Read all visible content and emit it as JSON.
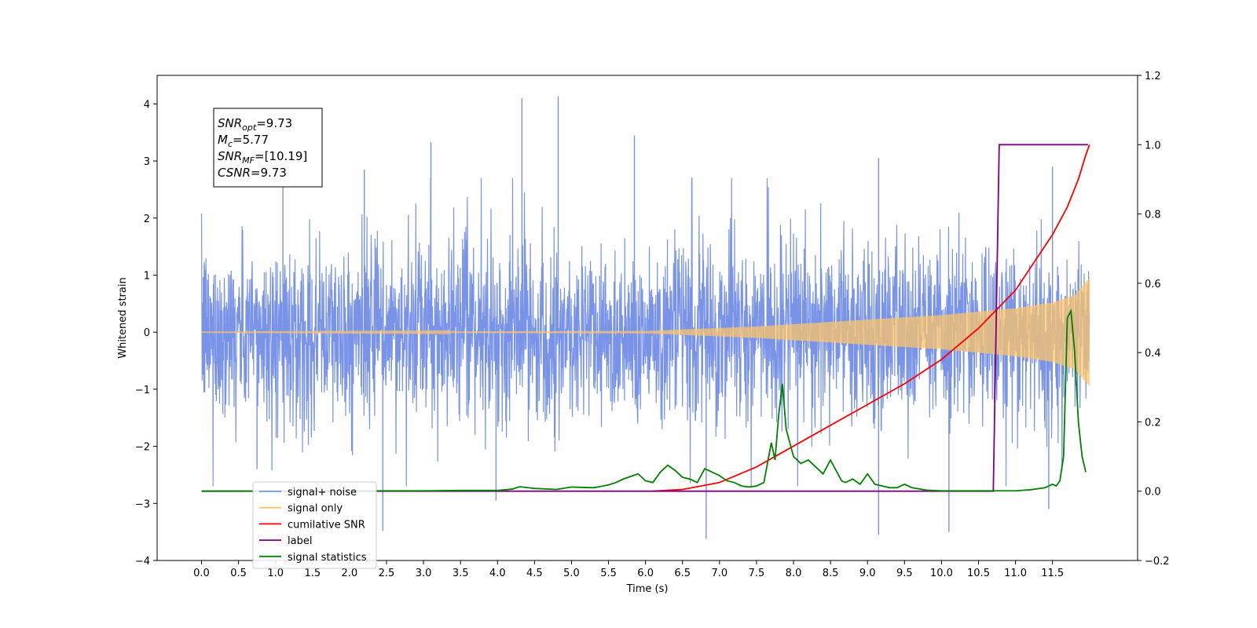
{
  "chart_data": {
    "type": "line",
    "title": "",
    "xlabel": "Time (s)",
    "ylabel_left": "Whitened strain",
    "ylabel_right": "",
    "xlim": [
      -0.6,
      12.65
    ],
    "ylim_left": [
      -4,
      4.5
    ],
    "ylim_right": [
      -0.2,
      1.2
    ],
    "x_ticks": [
      0.0,
      0.5,
      1.0,
      1.5,
      2.0,
      2.5,
      3.0,
      3.5,
      4.0,
      4.5,
      5.0,
      5.5,
      6.0,
      6.5,
      7.0,
      7.5,
      8.0,
      8.5,
      9.0,
      9.5,
      10.0,
      10.5,
      11.0,
      11.5
    ],
    "x_tick_labels": [
      "0.0",
      "0.5",
      "1.0",
      "1.5",
      "2.0",
      "2.5",
      "3.0",
      "3.5",
      "4.0",
      "4.5",
      "5.0",
      "5.5",
      "6.0",
      "6.5",
      "7.0",
      "7.5",
      "8.0",
      "8.5",
      "9.0",
      "9.5",
      "10.0",
      "10.5",
      "11.0",
      "11.5"
    ],
    "y_left_ticks": [
      -4,
      -3,
      -2,
      -1,
      0,
      1,
      2,
      3,
      4
    ],
    "y_left_tick_labels": [
      "−4",
      "−3",
      "−2",
      "−1",
      "0",
      "1",
      "2",
      "3",
      "4"
    ],
    "y_right_ticks": [
      -0.2,
      0.0,
      0.2,
      0.4,
      0.6,
      0.8,
      1.0,
      1.2
    ],
    "y_right_tick_labels": [
      "−0.2",
      "0.0",
      "0.2",
      "0.4",
      "0.6",
      "0.8",
      "1.0",
      "1.2"
    ],
    "grid": false,
    "legend_position": "lower-left",
    "annotation": {
      "lines": [
        {
          "base": "SNR",
          "sub": "opt",
          "value": "=9.73"
        },
        {
          "base": "M",
          "sub": "c",
          "value": "=5.77"
        },
        {
          "base": "SNR",
          "sub": "MF",
          "value": "=[10.19]"
        },
        {
          "base": "CSNR",
          "sub": "",
          "value": "=9.73"
        }
      ]
    },
    "series": [
      {
        "name": "signal+ noise",
        "color": "#7893e8",
        "axis": "left",
        "style": "noise",
        "x_range": [
          0.0,
          12.0
        ],
        "typical_amplitude": 1.4,
        "peaks": [
          {
            "x": 4.33,
            "y": 4.1
          },
          {
            "x": 4.82,
            "y": 4.13
          },
          {
            "x": 3.1,
            "y": 3.33
          },
          {
            "x": 5.85,
            "y": 3.45
          },
          {
            "x": 1.1,
            "y": 3.0
          },
          {
            "x": 2.2,
            "y": 2.85
          },
          {
            "x": 9.15,
            "y": 3.05
          },
          {
            "x": 11.5,
            "y": 2.9
          },
          {
            "x": 6.82,
            "y": -3.62
          },
          {
            "x": 2.45,
            "y": -3.48
          },
          {
            "x": 9.15,
            "y": -3.55
          },
          {
            "x": 10.1,
            "y": -3.5
          },
          {
            "x": 3.98,
            "y": -2.95
          },
          {
            "x": 0.75,
            "y": -2.4
          },
          {
            "x": 11.45,
            "y": -3.1
          }
        ]
      },
      {
        "name": "signal only",
        "color": "#fcc46a",
        "axis": "left",
        "style": "chirp",
        "x_range": [
          0.0,
          12.0
        ],
        "amplitude_points": [
          [
            0.0,
            0.003
          ],
          [
            6.0,
            0.02
          ],
          [
            7.5,
            0.1
          ],
          [
            9.0,
            0.22
          ],
          [
            10.0,
            0.3
          ],
          [
            11.0,
            0.42
          ],
          [
            11.5,
            0.52
          ],
          [
            11.8,
            0.65
          ],
          [
            12.0,
            0.95
          ]
        ]
      },
      {
        "name": "cumilative SNR",
        "color": "#ff0000",
        "axis": "right",
        "x": [
          6.1,
          6.5,
          7.0,
          7.5,
          8.0,
          8.5,
          9.0,
          9.5,
          10.0,
          10.5,
          11.0,
          11.5,
          11.7,
          11.85,
          11.95,
          12.0
        ],
        "y": [
          0.0,
          0.005,
          0.025,
          0.07,
          0.13,
          0.19,
          0.25,
          0.31,
          0.38,
          0.47,
          0.58,
          0.74,
          0.82,
          0.9,
          0.97,
          1.0
        ]
      },
      {
        "name": "label",
        "color": "#800080",
        "axis": "right",
        "x": [
          0.0,
          10.7,
          10.78,
          11.98
        ],
        "y": [
          0.0,
          0.0,
          1.0,
          1.0
        ]
      },
      {
        "name": "signal statistics",
        "color": "#008000",
        "axis": "right",
        "x": [
          0.0,
          2.5,
          3.0,
          3.5,
          4.0,
          4.2,
          4.3,
          4.5,
          4.8,
          5.0,
          5.3,
          5.5,
          5.6,
          5.7,
          5.9,
          6.0,
          6.1,
          6.2,
          6.3,
          6.4,
          6.5,
          6.6,
          6.7,
          6.8,
          6.9,
          7.0,
          7.1,
          7.2,
          7.3,
          7.4,
          7.5,
          7.6,
          7.7,
          7.75,
          7.8,
          7.85,
          7.9,
          8.0,
          8.1,
          8.2,
          8.3,
          8.4,
          8.5,
          8.6,
          8.65,
          8.7,
          8.8,
          8.9,
          9.0,
          9.1,
          9.2,
          9.3,
          9.4,
          9.5,
          9.6,
          9.8,
          10.0,
          10.5,
          11.0,
          11.2,
          11.4,
          11.5,
          11.55,
          11.6,
          11.65,
          11.7,
          11.75,
          11.8,
          11.85,
          11.9,
          11.95
        ],
        "y": [
          0.0,
          0.001,
          0.001,
          0.002,
          0.002,
          0.006,
          0.013,
          0.008,
          0.005,
          0.012,
          0.01,
          0.018,
          0.025,
          0.035,
          0.05,
          0.03,
          0.025,
          0.055,
          0.075,
          0.06,
          0.04,
          0.035,
          0.025,
          0.065,
          0.055,
          0.045,
          0.03,
          0.025,
          0.015,
          0.012,
          0.015,
          0.025,
          0.14,
          0.09,
          0.22,
          0.31,
          0.18,
          0.1,
          0.08,
          0.09,
          0.07,
          0.05,
          0.09,
          0.05,
          0.03,
          0.025,
          0.035,
          0.02,
          0.05,
          0.02,
          0.015,
          0.01,
          0.01,
          0.02,
          0.01,
          0.003,
          0.001,
          0.001,
          0.001,
          0.004,
          0.01,
          0.02,
          0.015,
          0.03,
          0.1,
          0.5,
          0.52,
          0.4,
          0.2,
          0.1,
          0.055
        ]
      }
    ],
    "legend": [
      {
        "name": "signal+ noise",
        "color": "#7893e8"
      },
      {
        "name": "signal only",
        "color": "#fcc46a"
      },
      {
        "name": "cumilative SNR",
        "color": "#ff0000"
      },
      {
        "name": "label",
        "color": "#800080"
      },
      {
        "name": "signal statistics",
        "color": "#008000"
      }
    ]
  }
}
